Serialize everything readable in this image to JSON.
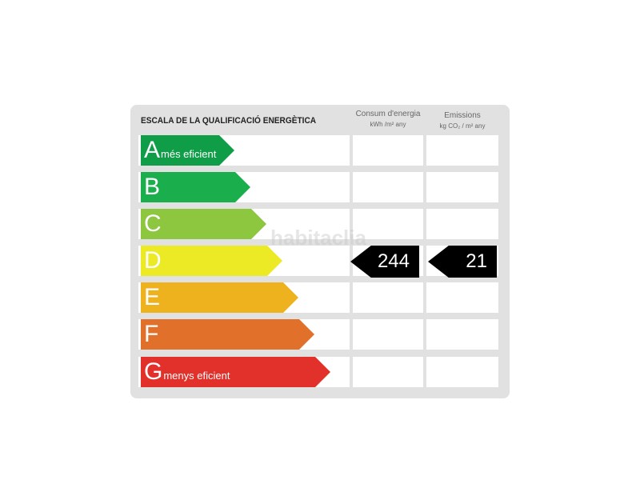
{
  "title": "ESCALA DE LA QUALIFICACIÓ ENERGÈTICA",
  "columns": [
    {
      "label": "Consum d'energia",
      "unit": "kWh /m² any"
    },
    {
      "label": "Emissions",
      "unit": "kg CO₂ / m² any"
    }
  ],
  "ratings": [
    {
      "letter": "A",
      "label": "més eficient",
      "color": "#0f9d48"
    },
    {
      "letter": "B",
      "label": "",
      "color": "#1aae4c"
    },
    {
      "letter": "C",
      "label": "",
      "color": "#8dc63f"
    },
    {
      "letter": "D",
      "label": "",
      "color": "#ece925"
    },
    {
      "letter": "E",
      "label": "",
      "color": "#efb21f"
    },
    {
      "letter": "F",
      "label": "",
      "color": "#e0702a"
    },
    {
      "letter": "G",
      "label": "menys eficient",
      "color": "#e2302b"
    }
  ],
  "current": {
    "rating": "D",
    "energy": "244",
    "emissions": "21"
  },
  "watermark": "habitaclia"
}
